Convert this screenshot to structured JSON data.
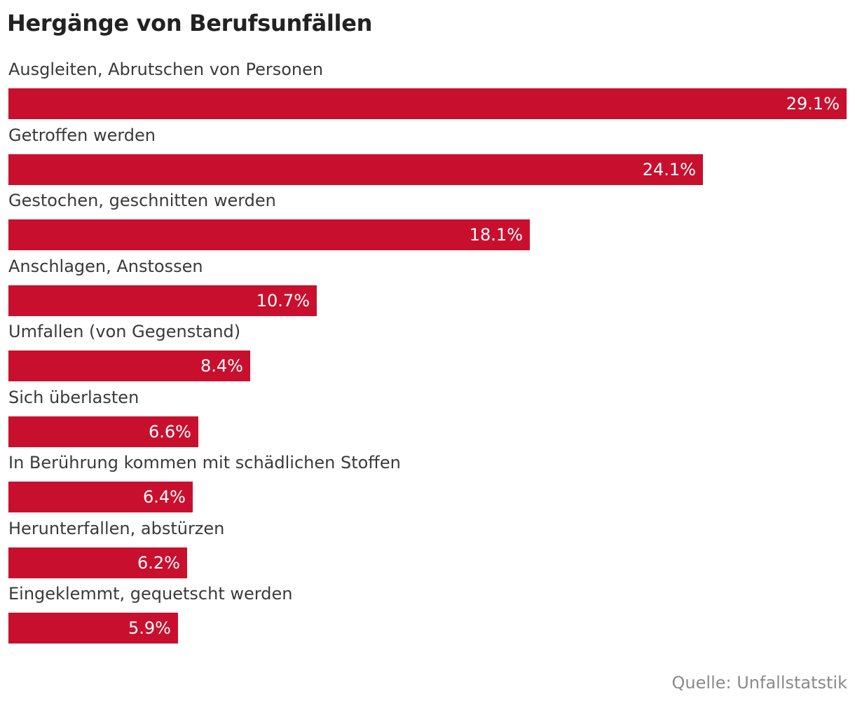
{
  "chart_data": {
    "type": "bar",
    "orientation": "horizontal",
    "title": "Hergänge von Berufsunfällen",
    "categories": [
      "Ausgleiten, Abrutschen von Personen",
      "Getroffen werden",
      "Gestochen, geschnitten werden",
      "Anschlagen, Anstossen",
      "Umfallen (von Gegenstand)",
      "Sich überlasten",
      "In Berührung kommen mit schädlichen Stoffen",
      "Herunterfallen, abstürzen",
      "Eingeklemmt, gequetscht werden"
    ],
    "values": [
      29.1,
      24.1,
      18.1,
      10.7,
      8.4,
      6.6,
      6.4,
      6.2,
      5.9
    ],
    "value_labels": [
      "29.1%",
      "24.1%",
      "18.1%",
      "10.7%",
      "8.4%",
      "6.6%",
      "6.4%",
      "6.2%",
      "5.9%"
    ],
    "unit": "%",
    "xlim": [
      0,
      29.1
    ],
    "grid": false,
    "legend": "none",
    "bar_color": "#c8102e",
    "source": "Quelle: Unfallstatstik"
  }
}
